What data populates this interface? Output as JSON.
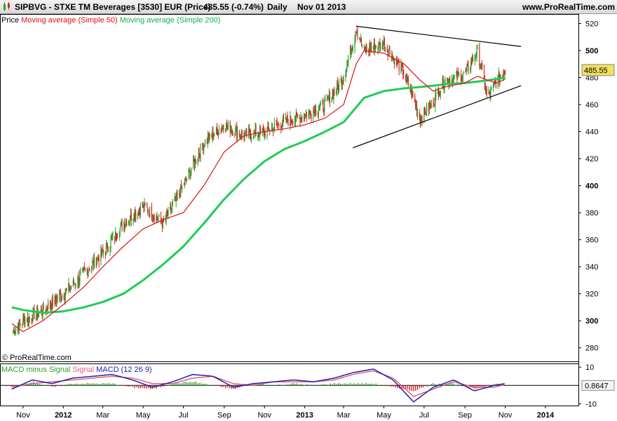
{
  "header": {
    "instrument": "SIPBVG - STXE TM Beverages [3530] EUR (Price)",
    "last": "485.55 (-0.74%)",
    "period": "Daily",
    "date": "Nov 01 2013",
    "website": "www.ProRealTime.com"
  },
  "legend": {
    "price": "Price",
    "ma50": "Moving average (Simple 50)",
    "ma200": "Moving average (Simple 200)"
  },
  "macd_legend": {
    "hist": "MACD minus Signal",
    "signal": "Signal",
    "macd": "MACD (12 26 9)"
  },
  "watermark": "© ProRealTime.com",
  "price_box": "485.55",
  "macd_box": "0.8647",
  "colors": {
    "up": "#2ca02c",
    "down": "#d62728",
    "ma50": "#e01010",
    "ma200": "#22cc55",
    "macd": "#2020aa",
    "signal": "#e06080",
    "price_box": "#f0e060"
  },
  "chart_data": [
    {
      "type": "candlestick",
      "title": "SIPBVG - STXE TM Beverages [3530] EUR (Price)",
      "x_tick_labels": [
        "Nov",
        "2012",
        "Mar",
        "May",
        "Jul",
        "Sep",
        "Nov",
        "2013",
        "Mar",
        "May",
        "Jul",
        "Sep",
        "Nov",
        "2014"
      ],
      "y_tick_labels": [
        "520",
        "500",
        "480",
        "460",
        "440",
        "420",
        "400",
        "380",
        "360",
        "340",
        "320",
        "300",
        "280"
      ],
      "ylim": [
        270,
        527
      ],
      "x": [
        "2011-10-15",
        "2011-11-01",
        "2011-12-01",
        "2012-01-01",
        "2012-02-01",
        "2012-03-01",
        "2012-04-01",
        "2012-05-01",
        "2012-06-01",
        "2012-07-01",
        "2012-08-01",
        "2012-09-01",
        "2012-10-01",
        "2012-11-01",
        "2012-12-01",
        "2013-01-01",
        "2013-02-01",
        "2013-03-01",
        "2013-03-20",
        "2013-04-01",
        "2013-05-01",
        "2013-06-01",
        "2013-06-25",
        "2013-07-15",
        "2013-08-01",
        "2013-09-01",
        "2013-09-20",
        "2013-10-05",
        "2013-10-20",
        "2013-11-01"
      ],
      "series": [
        {
          "name": "Price",
          "values": [
            292,
            300,
            308,
            320,
            335,
            350,
            372,
            385,
            372,
            400,
            432,
            445,
            437,
            440,
            447,
            452,
            460,
            480,
            516,
            500,
            505,
            483,
            450,
            462,
            478,
            482,
            500,
            465,
            478,
            485.55
          ]
        },
        {
          "name": "Moving average (Simple 50)",
          "values": [
            298,
            292,
            300,
            312,
            325,
            340,
            355,
            368,
            375,
            380,
            400,
            425,
            437,
            440,
            442,
            445,
            450,
            460,
            490,
            500,
            498,
            490,
            478,
            470,
            473,
            476,
            481,
            478,
            476,
            479
          ]
        },
        {
          "name": "Moving average (Simple 200)",
          "values": [
            310,
            308,
            306,
            307,
            310,
            314,
            320,
            330,
            342,
            355,
            372,
            390,
            405,
            418,
            427,
            433,
            440,
            447,
            458,
            465,
            470,
            472,
            473,
            474,
            475,
            476,
            477,
            478,
            479,
            480
          ]
        }
      ],
      "annotations": [
        {
          "type": "trendline",
          "from": [
            "2013-03-20",
            518
          ],
          "to": [
            "2013-11-25",
            503
          ]
        },
        {
          "type": "trendline",
          "from": [
            "2013-03-15",
            428
          ],
          "to": [
            "2013-11-25",
            474
          ]
        }
      ]
    },
    {
      "type": "bar+line",
      "title": "MACD (12 26 9)",
      "y_tick_labels": [
        "10",
        "-10"
      ],
      "ylim": [
        -11,
        12
      ],
      "x": [
        "2011-10-15",
        "2011-11-15",
        "2011-12-15",
        "2012-01-15",
        "2012-02-15",
        "2012-03-15",
        "2012-04-15",
        "2012-05-15",
        "2012-06-15",
        "2012-07-15",
        "2012-08-15",
        "2012-09-15",
        "2012-10-15",
        "2012-11-15",
        "2012-12-15",
        "2013-01-15",
        "2013-02-15",
        "2013-03-15",
        "2013-04-15",
        "2013-05-15",
        "2013-06-15",
        "2013-07-15",
        "2013-08-15",
        "2013-09-15",
        "2013-10-15",
        "2013-11-01"
      ],
      "series": [
        {
          "name": "MACD",
          "values": [
            -2,
            3,
            1,
            4,
            5,
            6,
            3,
            -1,
            2,
            6,
            5,
            -1,
            1,
            2,
            3,
            2,
            4,
            7,
            9,
            3,
            -9,
            -1,
            3,
            -3,
            0,
            1
          ]
        },
        {
          "name": "Signal",
          "values": [
            -1,
            1,
            2,
            3,
            4,
            5,
            4,
            1,
            1,
            4,
            5,
            1,
            0,
            2,
            2,
            2,
            3,
            6,
            8,
            4,
            -6,
            -2,
            2,
            -1,
            -1,
            0.5
          ]
        },
        {
          "name": "MACD minus Signal",
          "values": [
            -1,
            2,
            -1,
            1,
            1,
            1,
            -1,
            -2,
            1,
            2,
            0,
            -2,
            1,
            0,
            1,
            0,
            1,
            1,
            1,
            -1,
            -3,
            1,
            1,
            -2,
            1,
            0.5
          ]
        }
      ]
    }
  ]
}
